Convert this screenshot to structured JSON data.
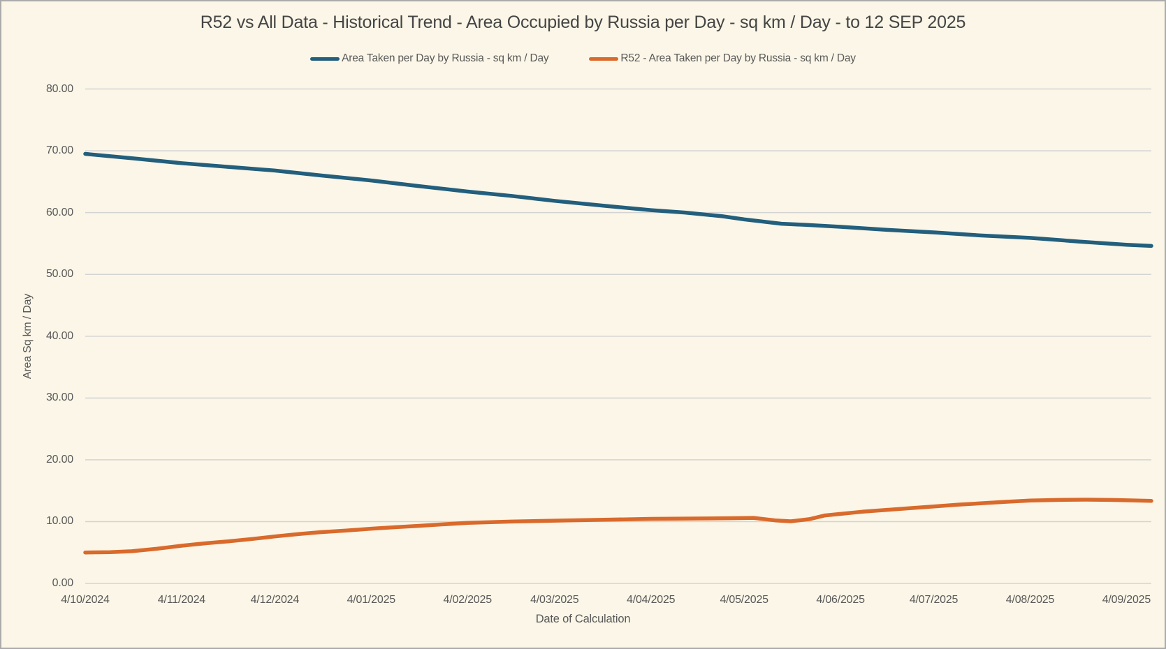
{
  "window": {
    "background_color": "#FBF6E7",
    "border_color": "#ABABAB"
  },
  "chart_data": {
    "type": "line",
    "title": "R52 vs All Data - Historical Trend - Area Occupied by Russia per Day - sq km / Day - to 12 SEP 2025",
    "xlabel": "Date of Calculation",
    "ylabel": "Area Sq km / Day",
    "ylim": [
      0,
      80
    ],
    "grid": "horizontal-only",
    "legend_position": "top-center",
    "x_total_days": 343,
    "yticks": [
      {
        "value": 0,
        "label": "0.00"
      },
      {
        "value": 10,
        "label": "10.00"
      },
      {
        "value": 20,
        "label": "20.00"
      },
      {
        "value": 30,
        "label": "30.00"
      },
      {
        "value": 40,
        "label": "40.00"
      },
      {
        "value": 50,
        "label": "50.00"
      },
      {
        "value": 60,
        "label": "60.00"
      },
      {
        "value": 70,
        "label": "70.00"
      },
      {
        "value": 80,
        "label": "80.00"
      }
    ],
    "xticks": [
      {
        "day": 0,
        "label": "4/10/2024"
      },
      {
        "day": 31,
        "label": "4/11/2024"
      },
      {
        "day": 61,
        "label": "4/12/2024"
      },
      {
        "day": 92,
        "label": "4/01/2025"
      },
      {
        "day": 123,
        "label": "4/02/2025"
      },
      {
        "day": 151,
        "label": "4/03/2025"
      },
      {
        "day": 182,
        "label": "4/04/2025"
      },
      {
        "day": 212,
        "label": "4/05/2025"
      },
      {
        "day": 243,
        "label": "4/06/2025"
      },
      {
        "day": 273,
        "label": "4/07/2025"
      },
      {
        "day": 304,
        "label": "4/08/2025"
      },
      {
        "day": 335,
        "label": "4/09/2025"
      }
    ],
    "series": [
      {
        "name": "Area Taken per Day by Russia - sq km / Day",
        "color": "#235E7D",
        "line_width": 5.5,
        "points": [
          [
            0,
            69.5
          ],
          [
            15,
            68.8
          ],
          [
            31,
            68.0
          ],
          [
            46,
            67.4
          ],
          [
            61,
            66.8
          ],
          [
            76,
            66.0
          ],
          [
            92,
            65.2
          ],
          [
            107,
            64.3
          ],
          [
            123,
            63.4
          ],
          [
            137,
            62.7
          ],
          [
            151,
            61.9
          ],
          [
            167,
            61.1
          ],
          [
            182,
            60.4
          ],
          [
            193,
            60.0
          ],
          [
            205,
            59.4
          ],
          [
            212,
            58.9
          ],
          [
            224,
            58.2
          ],
          [
            232,
            58.0
          ],
          [
            243,
            57.7
          ],
          [
            258,
            57.2
          ],
          [
            273,
            56.8
          ],
          [
            288,
            56.3
          ],
          [
            304,
            55.9
          ],
          [
            320,
            55.3
          ],
          [
            335,
            54.8
          ],
          [
            343,
            54.6
          ]
        ]
      },
      {
        "name": "R52 - Area Taken per Day by Russia - sq km / Day",
        "color": "#D96A2C",
        "line_width": 5.5,
        "points": [
          [
            0,
            5.0
          ],
          [
            8,
            5.05
          ],
          [
            15,
            5.2
          ],
          [
            23,
            5.6
          ],
          [
            31,
            6.1
          ],
          [
            39,
            6.5
          ],
          [
            46,
            6.8
          ],
          [
            54,
            7.2
          ],
          [
            61,
            7.6
          ],
          [
            69,
            8.0
          ],
          [
            76,
            8.3
          ],
          [
            84,
            8.55
          ],
          [
            92,
            8.85
          ],
          [
            100,
            9.1
          ],
          [
            107,
            9.3
          ],
          [
            115,
            9.55
          ],
          [
            123,
            9.8
          ],
          [
            137,
            10.0
          ],
          [
            151,
            10.15
          ],
          [
            167,
            10.3
          ],
          [
            182,
            10.45
          ],
          [
            197,
            10.5
          ],
          [
            207,
            10.55
          ],
          [
            215,
            10.6
          ],
          [
            222,
            10.2
          ],
          [
            227,
            10.05
          ],
          [
            233,
            10.4
          ],
          [
            238,
            11.0
          ],
          [
            243,
            11.25
          ],
          [
            250,
            11.6
          ],
          [
            258,
            11.9
          ],
          [
            266,
            12.2
          ],
          [
            273,
            12.45
          ],
          [
            281,
            12.75
          ],
          [
            288,
            12.95
          ],
          [
            296,
            13.2
          ],
          [
            304,
            13.4
          ],
          [
            313,
            13.5
          ],
          [
            322,
            13.55
          ],
          [
            330,
            13.5
          ],
          [
            335,
            13.45
          ],
          [
            343,
            13.35
          ]
        ]
      }
    ],
    "colors": {
      "gridline": "#D3D3D3",
      "tick_text": "#595959",
      "title_text": "#454545"
    }
  }
}
